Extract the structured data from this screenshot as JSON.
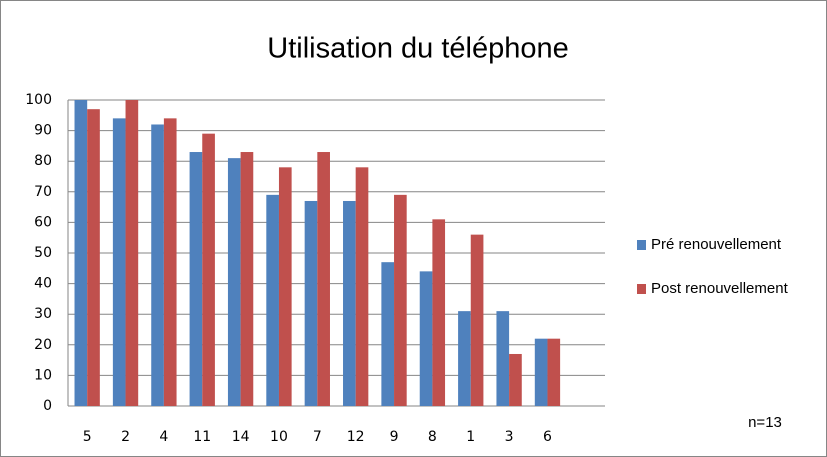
{
  "chart_data": {
    "type": "bar",
    "title": "Utilisation du téléphone",
    "categories": [
      "5",
      "2",
      "4",
      "11",
      "14",
      "10",
      "7",
      "12",
      "9",
      "8",
      "1",
      "3",
      "6"
    ],
    "series": [
      {
        "name": "Pré renouvellement",
        "color": "#4f81bd",
        "values": [
          100,
          94,
          92,
          83,
          81,
          69,
          67,
          67,
          47,
          44,
          31,
          31,
          22
        ]
      },
      {
        "name": "Post renouvellement",
        "color": "#c0504d",
        "values": [
          97,
          100,
          94,
          89,
          83,
          78,
          83,
          78,
          69,
          61,
          56,
          17,
          22
        ]
      }
    ],
    "ylim": [
      0,
      100
    ],
    "yticks": [
      0,
      10,
      20,
      30,
      40,
      50,
      60,
      70,
      80,
      90,
      100
    ],
    "grid": true,
    "legend": "right",
    "annotation": "n=13"
  }
}
